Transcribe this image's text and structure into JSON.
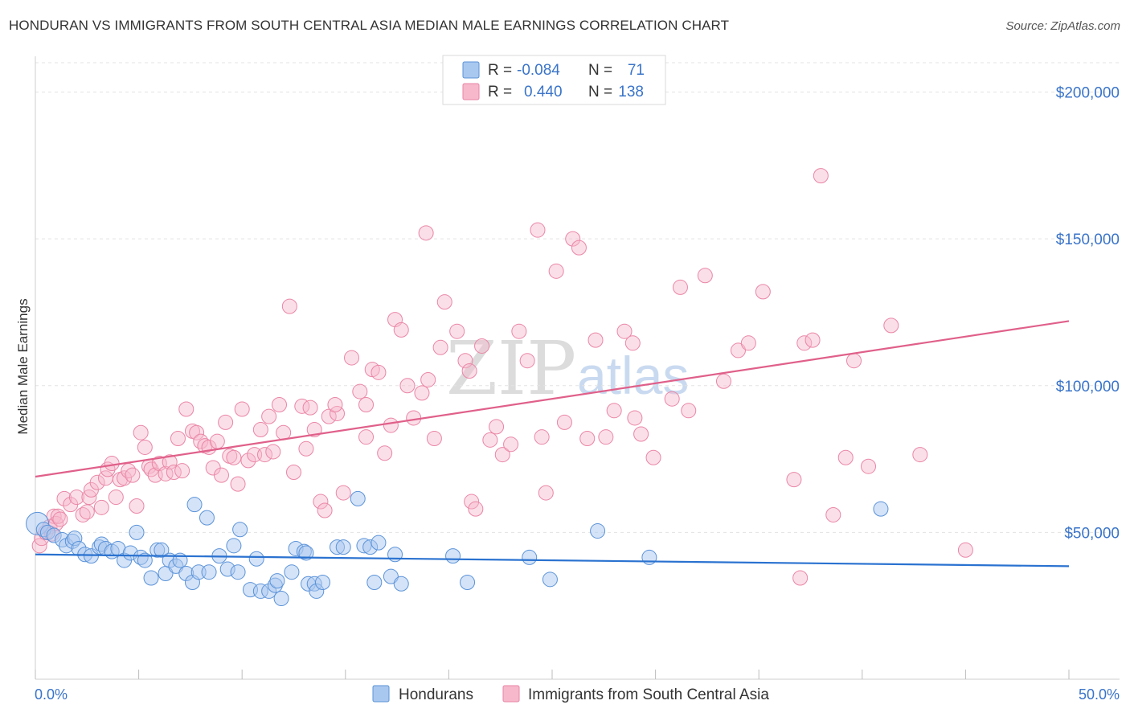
{
  "title": "HONDURAN VS IMMIGRANTS FROM SOUTH CENTRAL ASIA MEDIAN MALE EARNINGS CORRELATION CHART",
  "source": "Source: ZipAtlas.com",
  "watermark": {
    "zip": "ZIP",
    "atlas": "atlas"
  },
  "legend": {
    "row1": {
      "r_label": "R =",
      "r_value": "-0.084",
      "n_label": "N =",
      "n_value": "71"
    },
    "row2": {
      "r_label": "R =",
      "r_value": "0.440",
      "n_label": "N =",
      "n_value": "138"
    }
  },
  "bottom_legend": {
    "series1": "Hondurans",
    "series2": "Immigrants from South Central Asia"
  },
  "colors": {
    "blue_fill": "#a9c8f0",
    "blue_stroke": "#5b93d9",
    "blue_line": "#2a72d0",
    "pink_fill": "#f7b8cb",
    "pink_stroke": "#ea86a6",
    "pink_line": "#e0608a",
    "tick_text": "#3a74c9"
  },
  "chart_data": {
    "type": "scatter",
    "title": "HONDURAN VS IMMIGRANTS FROM SOUTH CENTRAL ASIA MEDIAN MALE EARNINGS CORRELATION CHART",
    "xlabel": "",
    "ylabel": "Median Male Earnings",
    "xlim": [
      0,
      50
    ],
    "ylim": [
      0,
      210000
    ],
    "x_tick_labels": [
      "0.0%",
      "50.0%"
    ],
    "y_ticks": [
      50000,
      100000,
      150000,
      200000
    ],
    "y_tick_labels": [
      "$50,000",
      "$100,000",
      "$150,000",
      "$200,000"
    ],
    "grid": "horizontal dashed",
    "legend_position": "top-center",
    "series": [
      {
        "name": "Hondurans",
        "color": "#5b93d9",
        "trend": {
          "x": [
            0,
            50
          ],
          "y": [
            42500,
            38500
          ]
        },
        "points": [
          [
            0.1,
            53000
          ],
          [
            0.4,
            51000
          ],
          [
            0.6,
            50000
          ],
          [
            0.9,
            49000
          ],
          [
            1.3,
            47500
          ],
          [
            1.5,
            45500
          ],
          [
            1.8,
            47000
          ],
          [
            1.9,
            48000
          ],
          [
            2.1,
            44500
          ],
          [
            2.4,
            42500
          ],
          [
            2.7,
            42000
          ],
          [
            3.1,
            45000
          ],
          [
            3.2,
            46000
          ],
          [
            3.4,
            44500
          ],
          [
            3.7,
            43500
          ],
          [
            4.0,
            44500
          ],
          [
            4.3,
            40500
          ],
          [
            4.6,
            43000
          ],
          [
            4.9,
            50000
          ],
          [
            5.1,
            41500
          ],
          [
            5.3,
            40500
          ],
          [
            5.6,
            34500
          ],
          [
            5.9,
            44000
          ],
          [
            6.1,
            44000
          ],
          [
            6.3,
            36000
          ],
          [
            6.5,
            40500
          ],
          [
            6.8,
            38500
          ],
          [
            7.0,
            40500
          ],
          [
            7.3,
            36000
          ],
          [
            7.6,
            33000
          ],
          [
            7.7,
            59500
          ],
          [
            7.9,
            36500
          ],
          [
            8.3,
            55000
          ],
          [
            8.4,
            36500
          ],
          [
            8.9,
            42000
          ],
          [
            9.3,
            37500
          ],
          [
            9.6,
            45500
          ],
          [
            9.8,
            36500
          ],
          [
            9.9,
            51000
          ],
          [
            10.4,
            30500
          ],
          [
            10.7,
            41000
          ],
          [
            10.9,
            30000
          ],
          [
            11.3,
            30000
          ],
          [
            11.6,
            32000
          ],
          [
            11.7,
            33500
          ],
          [
            11.9,
            27500
          ],
          [
            12.4,
            36500
          ],
          [
            12.6,
            44500
          ],
          [
            13.0,
            43500
          ],
          [
            13.1,
            43000
          ],
          [
            13.2,
            32500
          ],
          [
            13.5,
            32500
          ],
          [
            13.6,
            30000
          ],
          [
            13.9,
            33000
          ],
          [
            14.6,
            45000
          ],
          [
            14.9,
            45000
          ],
          [
            15.6,
            61500
          ],
          [
            15.9,
            45500
          ],
          [
            16.2,
            45000
          ],
          [
            16.4,
            33000
          ],
          [
            16.6,
            46500
          ],
          [
            17.2,
            35000
          ],
          [
            17.4,
            42500
          ],
          [
            17.7,
            32500
          ],
          [
            20.2,
            42000
          ],
          [
            20.9,
            33000
          ],
          [
            23.9,
            41500
          ],
          [
            24.9,
            34000
          ],
          [
            27.2,
            50500
          ],
          [
            29.7,
            41500
          ],
          [
            40.9,
            58000
          ]
        ]
      },
      {
        "name": "Immigrants from South Central Asia",
        "color": "#ea86a6",
        "trend": {
          "x": [
            0,
            50
          ],
          "y": [
            69000,
            122000
          ]
        },
        "points": [
          [
            0.2,
            45500
          ],
          [
            0.3,
            48000
          ],
          [
            0.5,
            50000
          ],
          [
            0.7,
            52000
          ],
          [
            0.8,
            49500
          ],
          [
            0.9,
            55500
          ],
          [
            1.0,
            53000
          ],
          [
            1.1,
            55500
          ],
          [
            1.2,
            54500
          ],
          [
            1.4,
            61500
          ],
          [
            1.7,
            59500
          ],
          [
            2.0,
            62000
          ],
          [
            2.3,
            56000
          ],
          [
            2.5,
            57000
          ],
          [
            2.6,
            62000
          ],
          [
            2.7,
            64500
          ],
          [
            3.0,
            67000
          ],
          [
            3.2,
            58500
          ],
          [
            3.4,
            68500
          ],
          [
            3.5,
            71500
          ],
          [
            3.7,
            73500
          ],
          [
            3.9,
            62000
          ],
          [
            4.1,
            68000
          ],
          [
            4.3,
            68500
          ],
          [
            4.5,
            71000
          ],
          [
            4.7,
            69500
          ],
          [
            4.9,
            59000
          ],
          [
            5.1,
            84000
          ],
          [
            5.3,
            79000
          ],
          [
            5.5,
            72500
          ],
          [
            5.6,
            71500
          ],
          [
            5.8,
            69500
          ],
          [
            6.0,
            73500
          ],
          [
            6.3,
            70000
          ],
          [
            6.5,
            74000
          ],
          [
            6.7,
            70500
          ],
          [
            6.9,
            82000
          ],
          [
            7.1,
            71000
          ],
          [
            7.3,
            92000
          ],
          [
            7.6,
            84500
          ],
          [
            7.8,
            84000
          ],
          [
            8.0,
            81000
          ],
          [
            8.2,
            79500
          ],
          [
            8.4,
            79000
          ],
          [
            8.6,
            72000
          ],
          [
            8.8,
            81000
          ],
          [
            9.0,
            69500
          ],
          [
            9.2,
            87500
          ],
          [
            9.4,
            76000
          ],
          [
            9.6,
            75500
          ],
          [
            9.8,
            66500
          ],
          [
            10.0,
            92000
          ],
          [
            10.3,
            74500
          ],
          [
            10.6,
            76500
          ],
          [
            10.9,
            85000
          ],
          [
            11.1,
            76500
          ],
          [
            11.3,
            89500
          ],
          [
            11.5,
            77500
          ],
          [
            11.8,
            93500
          ],
          [
            12.0,
            84000
          ],
          [
            12.3,
            127000
          ],
          [
            12.5,
            70500
          ],
          [
            12.9,
            93000
          ],
          [
            13.1,
            78500
          ],
          [
            13.3,
            92500
          ],
          [
            13.5,
            85000
          ],
          [
            13.8,
            60500
          ],
          [
            14.0,
            57500
          ],
          [
            14.2,
            89500
          ],
          [
            14.6,
            90500
          ],
          [
            14.9,
            63500
          ],
          [
            15.3,
            109500
          ],
          [
            15.7,
            98000
          ],
          [
            16.0,
            93500
          ],
          [
            16.3,
            105500
          ],
          [
            16.6,
            104500
          ],
          [
            16.9,
            77000
          ],
          [
            17.2,
            86500
          ],
          [
            17.4,
            122500
          ],
          [
            17.7,
            119000
          ],
          [
            18.0,
            100000
          ],
          [
            18.3,
            89000
          ],
          [
            18.7,
            97500
          ],
          [
            19.0,
            102000
          ],
          [
            19.3,
            82000
          ],
          [
            19.6,
            113000
          ],
          [
            19.8,
            128500
          ],
          [
            20.4,
            118500
          ],
          [
            20.8,
            108500
          ],
          [
            21.1,
            60500
          ],
          [
            21.3,
            58000
          ],
          [
            21.6,
            113500
          ],
          [
            22.0,
            81500
          ],
          [
            22.3,
            86000
          ],
          [
            22.6,
            76500
          ],
          [
            23.0,
            80000
          ],
          [
            23.4,
            118500
          ],
          [
            23.8,
            108500
          ],
          [
            24.3,
            153000
          ],
          [
            24.7,
            63500
          ],
          [
            25.2,
            139000
          ],
          [
            25.6,
            87500
          ],
          [
            26.0,
            150000
          ],
          [
            26.3,
            147000
          ],
          [
            26.7,
            82000
          ],
          [
            27.1,
            115500
          ],
          [
            27.6,
            82500
          ],
          [
            28.0,
            91500
          ],
          [
            28.5,
            118500
          ],
          [
            28.9,
            114500
          ],
          [
            29.3,
            83500
          ],
          [
            29.9,
            75500
          ],
          [
            30.8,
            95500
          ],
          [
            31.2,
            133500
          ],
          [
            31.6,
            91500
          ],
          [
            32.4,
            137500
          ],
          [
            33.3,
            101500
          ],
          [
            34.0,
            112000
          ],
          [
            34.5,
            114500
          ],
          [
            35.2,
            132000
          ],
          [
            36.7,
            68000
          ],
          [
            37.2,
            114500
          ],
          [
            37.6,
            115500
          ],
          [
            38.0,
            171500
          ],
          [
            38.6,
            56000
          ],
          [
            39.2,
            75500
          ],
          [
            39.6,
            108500
          ],
          [
            40.3,
            72500
          ],
          [
            41.4,
            120500
          ],
          [
            42.8,
            76500
          ],
          [
            45.0,
            44000
          ],
          [
            37.0,
            34500
          ],
          [
            29.0,
            89000
          ],
          [
            24.5,
            82500
          ],
          [
            21.0,
            105000
          ],
          [
            18.9,
            152000
          ],
          [
            16.0,
            82500
          ],
          [
            14.5,
            93500
          ]
        ]
      }
    ]
  }
}
